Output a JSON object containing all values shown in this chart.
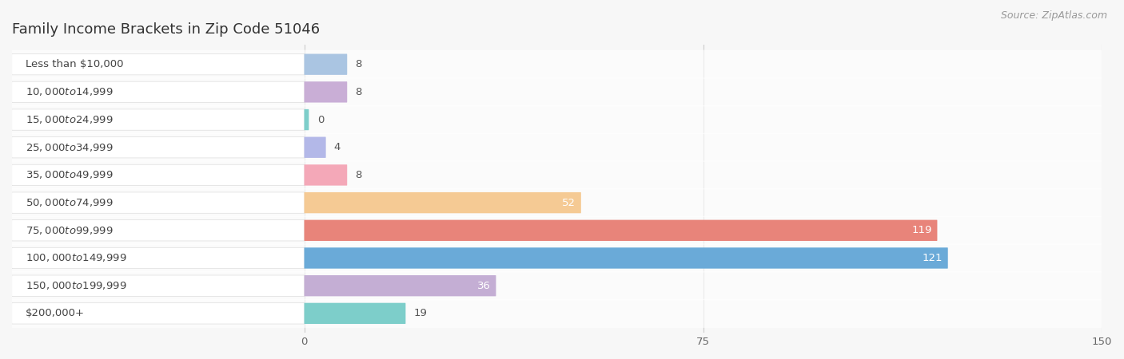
{
  "title": "Family Income Brackets in Zip Code 51046",
  "source": "Source: ZipAtlas.com",
  "categories": [
    "Less than $10,000",
    "$10,000 to $14,999",
    "$15,000 to $24,999",
    "$25,000 to $34,999",
    "$35,000 to $49,999",
    "$50,000 to $74,999",
    "$75,000 to $99,999",
    "$100,000 to $149,999",
    "$150,000 to $199,999",
    "$200,000+"
  ],
  "values": [
    8,
    8,
    0,
    4,
    8,
    52,
    119,
    121,
    36,
    19
  ],
  "bar_colors": [
    "#aac5e2",
    "#c9aed6",
    "#7dceca",
    "#b3b8e8",
    "#f4a8b8",
    "#f5ca94",
    "#e8847a",
    "#6aaad8",
    "#c4aed4",
    "#7dceca"
  ],
  "background_color": "#f7f7f7",
  "xlim_left": -55,
  "xlim_right": 150,
  "xticks": [
    0,
    75,
    150
  ],
  "label_color_light": "#ffffff",
  "label_color_dark": "#555555",
  "title_fontsize": 13,
  "label_fontsize": 9.5,
  "tick_fontsize": 9.5,
  "source_fontsize": 9
}
